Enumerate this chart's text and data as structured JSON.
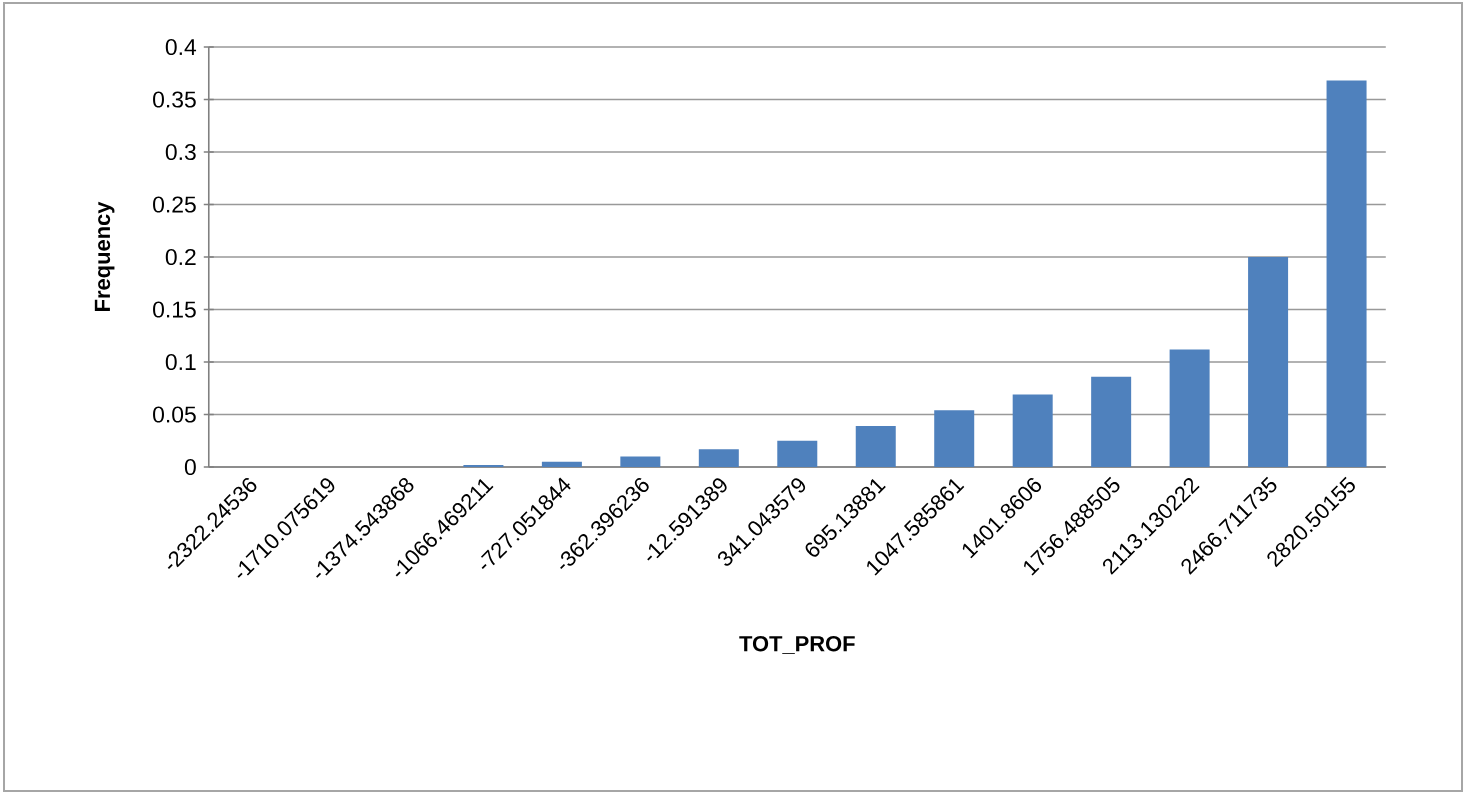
{
  "chart_data": {
    "type": "bar",
    "xlabel": "TOT_PROF",
    "ylabel": "Frequency",
    "categories": [
      "-2322.24536",
      "-1710.075619",
      "-1374.543868",
      "-1066.469211",
      "-727.051844",
      "-362.396236",
      "-12.591389",
      "341.043579",
      "695.13881",
      "1047.585861",
      "1401.8606",
      "1756.488505",
      "2113.130222",
      "2466.711735",
      "2820.50155"
    ],
    "values": [
      0,
      0,
      0,
      0.002,
      0.005,
      0.01,
      0.017,
      0.025,
      0.039,
      0.054,
      0.069,
      0.086,
      0.112,
      0.2,
      0.368
    ],
    "color": "#4f81bd",
    "ylim": [
      0,
      0.4
    ],
    "yticks": [
      0,
      0.05,
      0.1,
      0.15,
      0.2,
      0.25,
      0.3,
      0.35,
      0.4
    ],
    "grid": "y"
  }
}
